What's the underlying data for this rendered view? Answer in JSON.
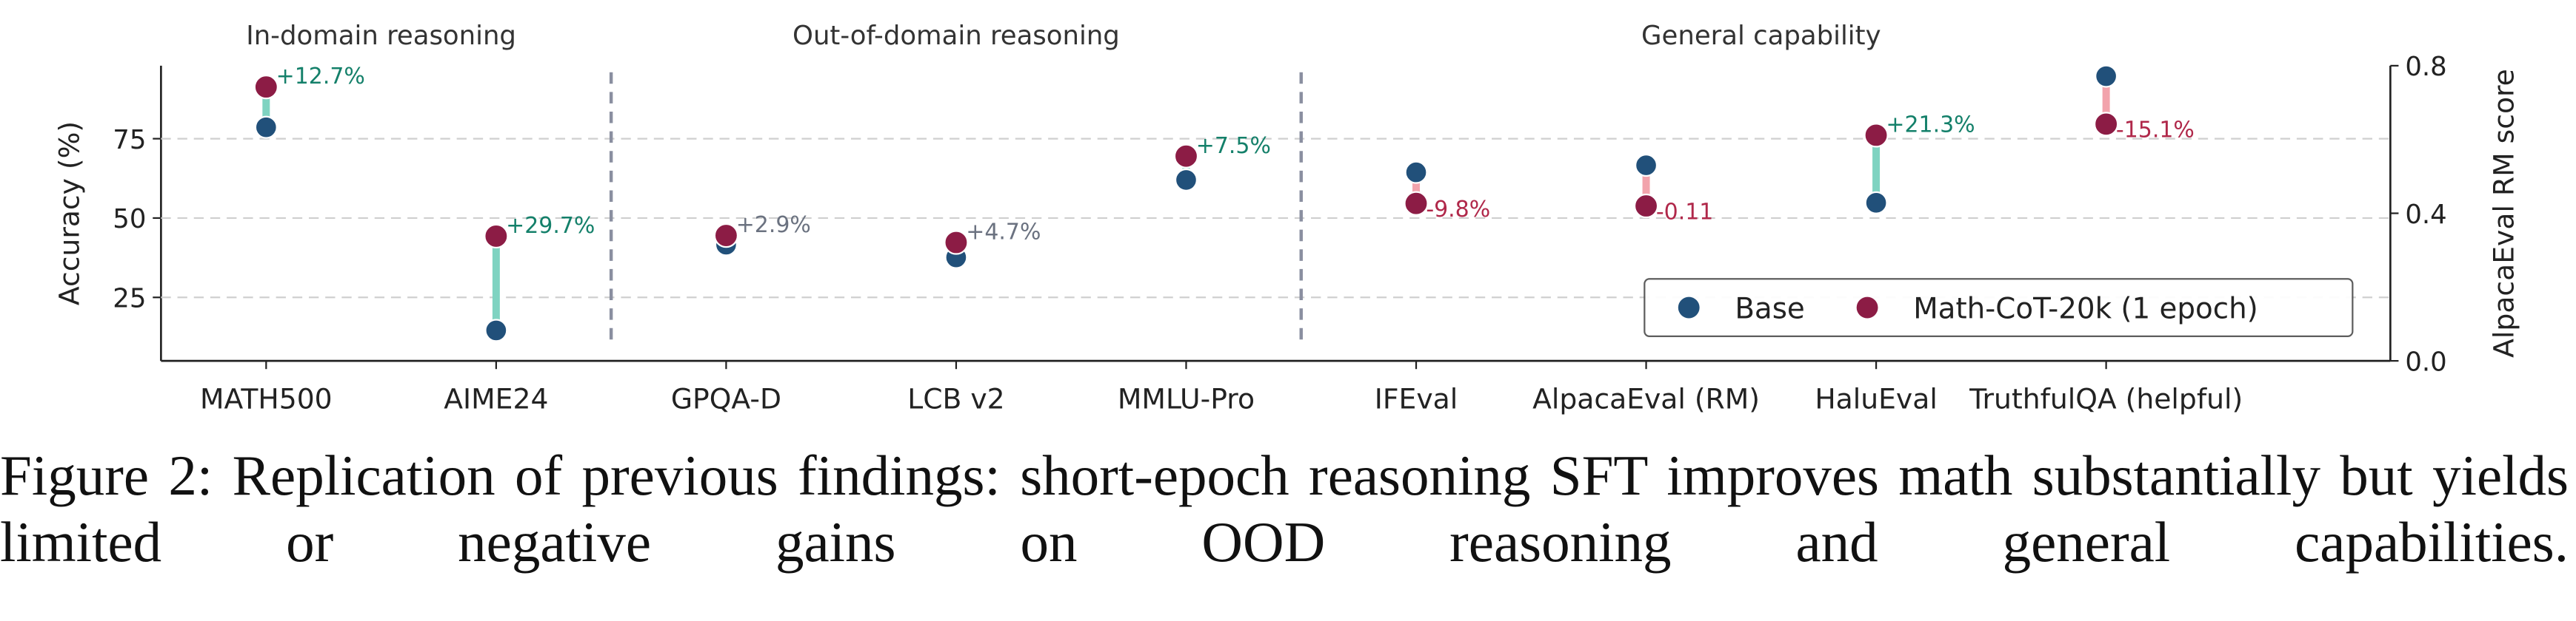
{
  "chart_data": {
    "type": "dumbbell",
    "groups": [
      {
        "label": "In-domain reasoning",
        "categories": [
          "MATH500",
          "AIME24"
        ]
      },
      {
        "label": "Out-of-domain reasoning",
        "categories": [
          "GPQA-D",
          "LCB v2",
          "MMLU-Pro"
        ]
      },
      {
        "label": "General capability",
        "categories": [
          "IFEval",
          "AlpacaEval (RM)",
          "HaluEval",
          "TruthfulQA (helpful)"
        ]
      }
    ],
    "category_axis": [
      "y",
      "y",
      "y",
      "y",
      "y",
      "y",
      "y2",
      "y",
      "y"
    ],
    "series": [
      {
        "name": "Base",
        "color": "#21507a",
        "values": [
          78.6,
          14.6,
          41.6,
          37.6,
          62.0,
          64.4,
          0.53,
          54.8,
          94.7
        ]
      },
      {
        "name": "Math-CoT-20k (1 epoch)",
        "color": "#8c1c45",
        "values": [
          91.3,
          44.3,
          44.5,
          42.3,
          69.5,
          54.6,
          0.42,
          76.1,
          79.6
        ]
      }
    ],
    "annotations": [
      "+12.7%",
      "+29.7%",
      "+2.9%",
      "+4.7%",
      "+7.5%",
      "-9.8%",
      "-0.11",
      "+21.3%",
      "-15.1%"
    ],
    "annotation_colors": [
      "#14806a",
      "#14806a",
      "#6b7280",
      "#6b7280",
      "#14806a",
      "#b0284a",
      "#b0284a",
      "#14806a",
      "#b0284a"
    ],
    "connector_colors": [
      "#7fd3c1",
      "#7fd3c1",
      "#7fd3c1",
      "#7fd3c1",
      "#7fd3c1",
      "#f2a3ac",
      "#f2a3ac",
      "#7fd3c1",
      "#f2a3ac"
    ],
    "ylabel": "Accuracy (%)",
    "y2label": "AlpacaEval RM score",
    "ylim": [
      5,
      98
    ],
    "yticks": [
      25,
      50,
      75
    ],
    "y2lim": [
      0,
      0.8
    ],
    "y2ticks": [
      {
        "value": 0,
        "label": "0.0"
      },
      0.4,
      0.8
    ],
    "grid": true,
    "legend": "lower right",
    "caption": "Figure 2: Replication of previous findings: short-epoch reasoning SFT improves math substantially but yields limited or negative gains on OOD reasoning and general capabilities."
  }
}
